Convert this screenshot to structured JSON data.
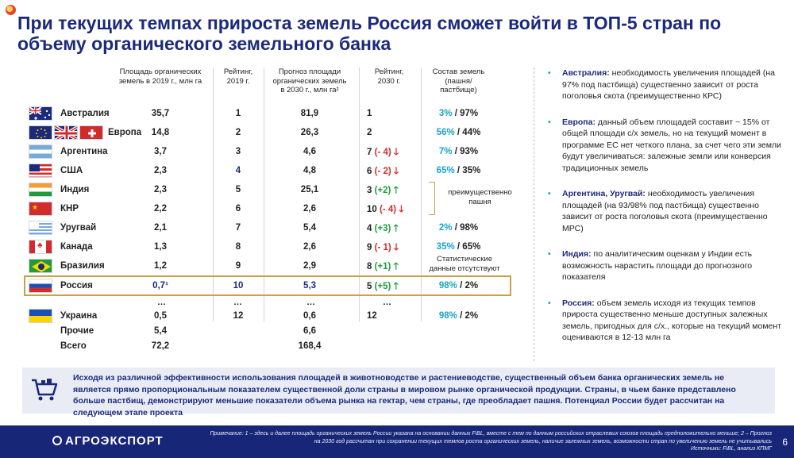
{
  "title": "При текущих темпах прироста земель Россия сможет войти в ТОП-5 стран по объему органического земельного банка",
  "headers": {
    "area2019": "Площадь органических земель в 2019 г., млн га",
    "rank2019": "Рейтинг, 2019 г.",
    "forecast2030": "Прогноз площади органических земель в 2030 г., млн га²",
    "rank2030": "Рейтинг, 2030 г.",
    "share": "Состав земель (пашня/пастбище)"
  },
  "rows": [
    {
      "name": "Австралия",
      "area": "35,7",
      "rank19": "1",
      "fc": "81,9",
      "rank30": "1",
      "delta": "",
      "dir": "",
      "share_a": "3%",
      "share_b": "/ 97%"
    },
    {
      "name": "Европа",
      "area": "14,8",
      "rank19": "2",
      "fc": "26,3",
      "rank30": "2",
      "delta": "",
      "dir": "",
      "share_a": "56%",
      "share_b": "/ 44%"
    },
    {
      "name": "Аргентина",
      "area": "3,7",
      "rank19": "3",
      "fc": "4,6",
      "rank30": "7",
      "delta": "(- 4)",
      "dir": "down",
      "share_a": "7%",
      "share_b": "/ 93%"
    },
    {
      "name": "США",
      "area": "2,3",
      "rank19": "4",
      "fc": "4,8",
      "rank30": "6",
      "delta": "(- 2)",
      "dir": "down",
      "share_a": "65%",
      "share_b": "/ 35%"
    },
    {
      "name": "Индия",
      "area": "2,3",
      "rank19": "5",
      "fc": "25,1",
      "rank30": "3",
      "delta": "(+2)",
      "dir": "up",
      "share_a": "",
      "share_b": ""
    },
    {
      "name": "КНР",
      "area": "2,2",
      "rank19": "6",
      "fc": "2,6",
      "rank30": "10",
      "delta": "(- 4)",
      "dir": "down",
      "share_a": "",
      "share_b": ""
    },
    {
      "name": "Уругвай",
      "area": "2,1",
      "rank19": "7",
      "fc": "5,4",
      "rank30": "4",
      "delta": "(+3)",
      "dir": "up",
      "share_a": "2%",
      "share_b": "/ 98%"
    },
    {
      "name": "Канада",
      "area": "1,3",
      "rank19": "8",
      "fc": "2,6",
      "rank30": "9",
      "delta": "(- 1)",
      "dir": "down",
      "share_a": "35%",
      "share_b": "/ 65%"
    },
    {
      "name": "Бразилия",
      "area": "1,2",
      "rank19": "9",
      "fc": "2,9",
      "rank30": "8",
      "delta": "(+1)",
      "dir": "up",
      "share_a": "",
      "share_b": ""
    }
  ],
  "russia": {
    "name": "Россия",
    "area": "0,7¹",
    "rank19": "10",
    "fc": "5,3",
    "rank30": "5",
    "delta": "(+5)",
    "share_a": "98%",
    "share_b": "/ 2%"
  },
  "ukraine": {
    "name": "Украина",
    "area": "0,5",
    "rank19": "12",
    "fc": "0,6",
    "rank30": "12",
    "share_a": "98%",
    "share_b": "/ 2%"
  },
  "others": {
    "name": "Прочие",
    "area": "5,4",
    "fc": "6,6"
  },
  "total": {
    "name": "Всего",
    "area": "72,2",
    "fc": "168,4"
  },
  "ellipsis": "…",
  "mostly_arable": "преимущественно пашня",
  "no_stats": "Статистические данные отсутствуют",
  "panel": [
    {
      "bold": "Австралия:",
      "text": " необходимость увеличения площадей (на 97% под пастбища) существенно зависит от роста поголовья скота (преимущественно КРС)"
    },
    {
      "bold": "Европа:",
      "text": " данный объем площадей составит ~ 15% от общей площади с/х земель, но на текущий момент в программе ЕС нет четкого плана, за счет чего эти земли будут увеличиваться: залежные земли или конверсия традиционных земель"
    },
    {
      "bold": "Аргентина, Уругвай:",
      "text": " необходимость увеличения площадей (на 93/98% под пастбища) существенно зависит от роста поголовья скота (преимущественно МРС)"
    },
    {
      "bold": "Индия:",
      "text": " по аналитическим оценкам у Индии есть возможность нарастить площади до прогнозного показателя"
    },
    {
      "bold": "Россия:",
      "text": " объем земель исходя из текущих темпов прироста существенно меньше доступных залежных земель, пригодных для с/х., которые на текущий момент оцениваются в 12-13 млн га"
    }
  ],
  "conclusion": "Исходя из различной эффективности использования площадей в животноводстве и растениеводстве, существенный объем банка органических земель не является прямо пропорциональным показателем существенной доли страны в мировом рынке органической продукции. Страны, в чьем банке представлено больше пастбищ, демонстрируют меньшие показатели объема рынка на гектар, чем страны, где преобладает пашня. Потенциал России будет рассчитан на следующем этапе проекта",
  "footer": {
    "logo": "АГРОЭКСПОРТ",
    "note": "Примечание: 1 – здесь и далее площадь органических земель России указана на основании данных FiBL, вместе с тем по данным российских отраслевых союзов площадь предположительно меньше; 2 – Прогноз на 2030 год рассчитан при сохранении текущих темпов роста органических земель, наличие залежных земель, возможности стран по увеличению земель не учитывались",
    "sources": "Источники: FiBL, анализ КПМГ",
    "page": "6"
  },
  "colors": {
    "accent": "#1aa3c8",
    "navy": "#172677",
    "red": "#d22b2b",
    "green": "#1e9c3a",
    "gold": "#c9a04a"
  }
}
